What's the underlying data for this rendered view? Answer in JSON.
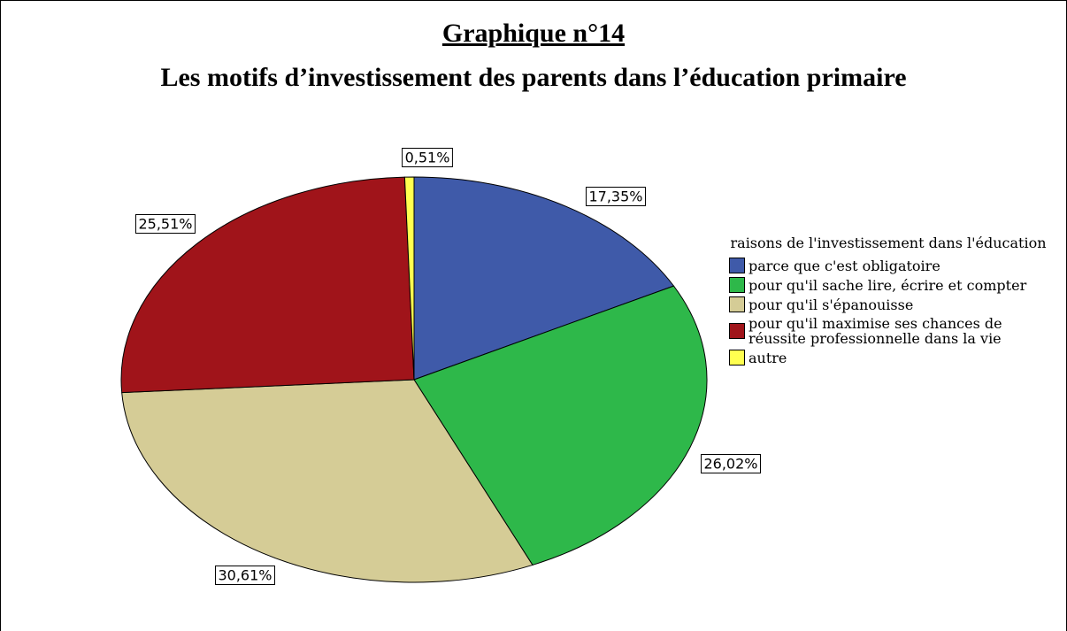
{
  "chart_data": {
    "type": "pie",
    "title": "Graphique n°14",
    "subtitle": "Les motifs d’investissement des parents dans l’éducation primaire",
    "legend_title": "raisons de l'investissement dans l'éducation",
    "categories": [
      "parce que c'est obligatoire",
      "pour qu'il sache lire, écrire et compter",
      "pour qu'il s'épanouisse",
      "pour qu'il maximise ses chances de réussite professionnelle dans la vie",
      "autre"
    ],
    "values": [
      17.35,
      26.02,
      30.61,
      25.51,
      0.51
    ],
    "value_labels": [
      "17,35%",
      "26,02%",
      "30,61%",
      "25,51%",
      "0,51%"
    ],
    "colors": [
      "#3f5aa9",
      "#2eb84a",
      "#d5cc96",
      "#a0141a",
      "#ffff50"
    ],
    "legend": "right"
  }
}
